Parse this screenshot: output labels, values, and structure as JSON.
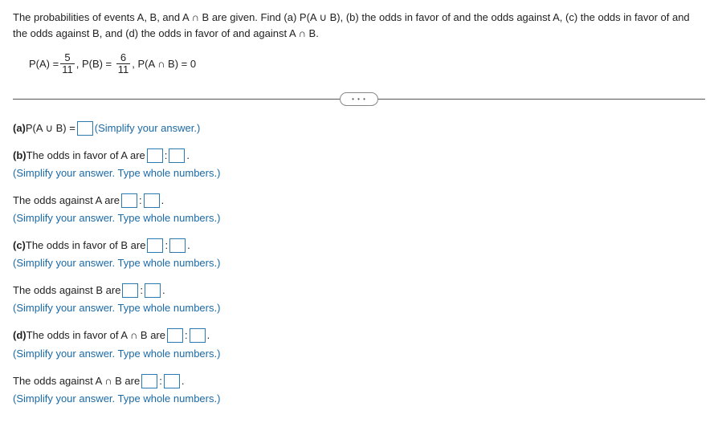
{
  "problem": {
    "intro": "The probabilities of events A, B, and A ∩ B are given. Find (a) P(A ∪ B), (b) the odds in favor of and the odds against A, (c) the odds in favor of and the odds against B, and (d) the odds in favor of and against A ∩ B.",
    "given": {
      "pa_label": "P(A) =",
      "pa_num": "5",
      "pa_den": "11",
      "pb_label": ", P(B) =",
      "pb_num": "6",
      "pb_den": "11",
      "pab_label": ", P(A ∩ B) = 0"
    }
  },
  "divider_dots": "• • •",
  "parts": {
    "a": {
      "lead": "(a) ",
      "text_before": "P(A ∪ B) = ",
      "hint": " (Simplify your answer.)"
    },
    "b_favor": {
      "lead": "(b) ",
      "text_before": "The odds in favor of A are ",
      "sep": ":",
      "period": ".",
      "hint": "(Simplify your answer. Type whole numbers.)"
    },
    "b_against": {
      "text_before": "The odds against A are ",
      "sep": ":",
      "period": ".",
      "hint": "(Simplify your answer. Type whole numbers.)"
    },
    "c_favor": {
      "lead": "(c) ",
      "text_before": "The odds in favor of B are ",
      "sep": ":",
      "period": ".",
      "hint": "(Simplify your answer. Type whole numbers.)"
    },
    "c_against": {
      "text_before": "The odds against B are ",
      "sep": ":",
      "period": ".",
      "hint": "(Simplify your answer. Type whole numbers.)"
    },
    "d_favor": {
      "lead": "(d) ",
      "text_before": "The odds in favor of A ∩ B are ",
      "sep": ":",
      "period": ".",
      "hint": "(Simplify your answer. Type whole numbers.)"
    },
    "d_against": {
      "text_before": "The odds against A ∩ B are ",
      "sep": ":",
      "period": ".",
      "hint": "(Simplify your answer. Type whole numbers.)"
    }
  }
}
